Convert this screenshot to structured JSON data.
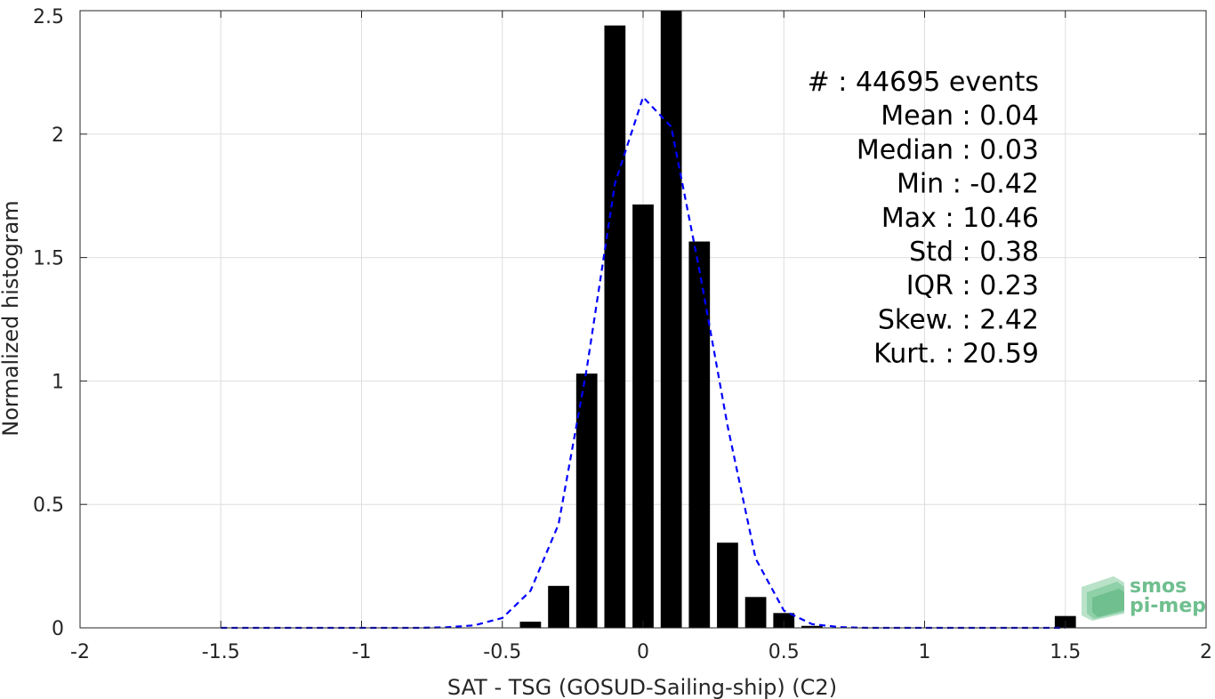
{
  "chart_data": {
    "type": "bar",
    "xlabel": "SAT - TSG (GOSUD-Sailing-ship) (C2)",
    "ylabel": "Normalized histogram",
    "xlim": [
      -2,
      2
    ],
    "ylim": [
      0,
      2.5
    ],
    "grid": true,
    "x_ticks": [
      "-2",
      "-1.5",
      "-1",
      "-0.5",
      "0",
      "0.5",
      "1",
      "1.5",
      "2"
    ],
    "y_ticks": [
      "0",
      "0.5",
      "1",
      "1.5",
      "2",
      "2.5"
    ],
    "bars": {
      "color": "#000000",
      "x": [
        -0.4,
        -0.3,
        -0.2,
        -0.1,
        0.0,
        0.1,
        0.2,
        0.3,
        0.4,
        0.5,
        0.6,
        1.5
      ],
      "values": [
        0.025,
        0.17,
        1.03,
        2.44,
        1.715,
        2.5,
        1.565,
        0.345,
        0.125,
        0.06,
        0.008,
        0.048
      ]
    },
    "fit_curve": {
      "color": "#0000ff",
      "style": "dashed",
      "x": [
        -1.5,
        -1.4,
        -1.3,
        -1.2,
        -1.1,
        -1.0,
        -0.9,
        -0.8,
        -0.7,
        -0.6,
        -0.5,
        -0.4,
        -0.3,
        -0.2,
        -0.1,
        0.0,
        0.1,
        0.2,
        0.3,
        0.4,
        0.5,
        0.6,
        0.7,
        0.8,
        0.9,
        1.0,
        1.1,
        1.2,
        1.3,
        1.4,
        1.5
      ],
      "y": [
        0,
        0,
        0,
        0,
        0,
        0,
        0,
        0,
        0.002,
        0.01,
        0.04,
        0.15,
        0.42,
        1.05,
        1.8,
        2.15,
        2.03,
        1.45,
        0.82,
        0.28,
        0.07,
        0.015,
        0.003,
        0,
        0,
        0,
        0,
        0,
        0,
        0,
        0
      ]
    },
    "stats": [
      {
        "label": "#  : 44695 events"
      },
      {
        "label": "Mean : 0.04"
      },
      {
        "label": "Median : 0.03"
      },
      {
        "label": "Min : -0.42"
      },
      {
        "label": "Max : 10.46"
      },
      {
        "label": "Std : 0.38"
      },
      {
        "label": "IQR : 0.23"
      },
      {
        "label": "Skew. : 2.42"
      },
      {
        "label": "Kurt. : 20.59"
      }
    ]
  },
  "logo": {
    "line1": "smos",
    "line2": "pi-mep"
  }
}
